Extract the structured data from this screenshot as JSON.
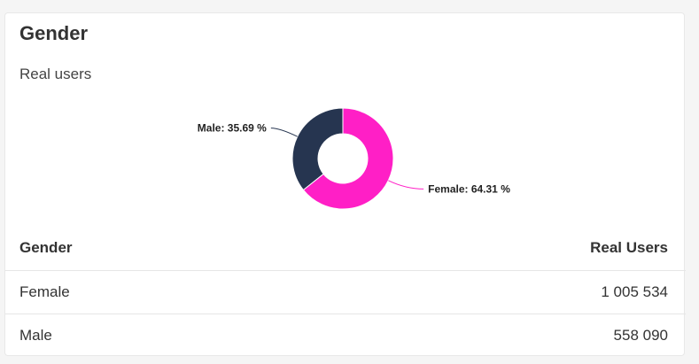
{
  "card": {
    "title": "Gender",
    "subtitle": "Real users"
  },
  "chart_data": {
    "type": "pie",
    "donut": true,
    "slices": [
      {
        "label": "Female",
        "percent": 64.31,
        "display": "Female: 64.31 %",
        "color": "#ff1fc6"
      },
      {
        "label": "Male",
        "percent": 35.69,
        "display": "Male: 35.69 %",
        "color": "#263550"
      }
    ]
  },
  "table": {
    "headers": [
      "Gender",
      "Real Users"
    ],
    "rows": [
      {
        "gender": "Female",
        "users": "1 005 534"
      },
      {
        "gender": "Male",
        "users": "558 090"
      }
    ]
  }
}
